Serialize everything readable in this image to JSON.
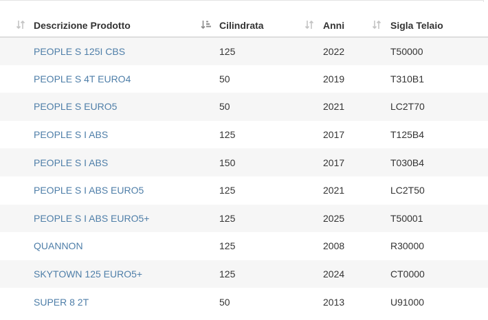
{
  "table": {
    "headers": {
      "descrizione": "Descrizione Prodotto",
      "cilindrata": "Cilindrata",
      "anni": "Anni",
      "sigla": "Sigla Telaio"
    },
    "sort_icons": {
      "descrizione": "sort-unsorted-icon",
      "cilindrata": "sort-amount-asc-icon",
      "anni": "sort-unsorted-icon",
      "sigla": "sort-unsorted-icon"
    },
    "rows": [
      {
        "descrizione": "PEOPLE S 125I CBS",
        "cilindrata": "125",
        "anni": "2022",
        "sigla": "T50000"
      },
      {
        "descrizione": "PEOPLE S 4T EURO4",
        "cilindrata": "50",
        "anni": "2019",
        "sigla": "T310B1"
      },
      {
        "descrizione": "PEOPLE S EURO5",
        "cilindrata": "50",
        "anni": "2021",
        "sigla": "LC2T70"
      },
      {
        "descrizione": "PEOPLE S I ABS",
        "cilindrata": "125",
        "anni": "2017",
        "sigla": "T125B4"
      },
      {
        "descrizione": "PEOPLE S I ABS",
        "cilindrata": "150",
        "anni": "2017",
        "sigla": "T030B4"
      },
      {
        "descrizione": "PEOPLE S I ABS EURO5",
        "cilindrata": "125",
        "anni": "2021",
        "sigla": "LC2T50"
      },
      {
        "descrizione": "PEOPLE S I ABS EURO5+",
        "cilindrata": "125",
        "anni": "2025",
        "sigla": "T50001"
      },
      {
        "descrizione": "QUANNON",
        "cilindrata": "125",
        "anni": "2008",
        "sigla": "R30000"
      },
      {
        "descrizione": "SKYTOWN 125 EURO5+",
        "cilindrata": "125",
        "anni": "2024",
        "sigla": "CT0000"
      },
      {
        "descrizione": "SUPER 8 2T",
        "cilindrata": "50",
        "anni": "2013",
        "sigla": "U91000"
      }
    ]
  },
  "colors": {
    "link": "#4e7ea8",
    "row_stripe": "#f6f6f6",
    "header_border": "#dddddd",
    "icon_inactive": "#c4c4c4",
    "icon_active": "#8c8c8c"
  }
}
